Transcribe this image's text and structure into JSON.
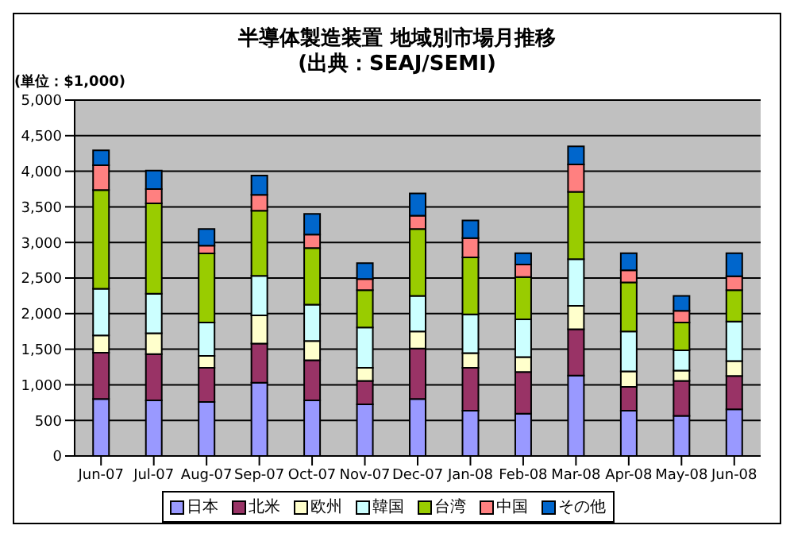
{
  "chart_data": {
    "type": "bar",
    "stacked": true,
    "title": "半導体製造装置 地域別市場月推移",
    "subtitle": "(出典：SEAJ/SEMI)",
    "ylabel": "(単位：$1,000)",
    "categories": [
      "Jun-07",
      "Jul-07",
      "Aug-07",
      "Sep-07",
      "Oct-07",
      "Nov-07",
      "Dec-07",
      "Jan-08",
      "Feb-08",
      "Mar-08",
      "Apr-08",
      "May-08",
      "Jun-08"
    ],
    "series": [
      {
        "name": "日本",
        "color": "#9999ff",
        "values": [
          800,
          780,
          760,
          1030,
          780,
          725,
          800,
          635,
          595,
          1130,
          635,
          565,
          655
        ]
      },
      {
        "name": "北米",
        "color": "#993366",
        "values": [
          650,
          650,
          480,
          550,
          565,
          330,
          710,
          605,
          585,
          650,
          335,
          490,
          470
        ]
      },
      {
        "name": "欧州",
        "color": "#ffffcc",
        "values": [
          245,
          295,
          165,
          395,
          270,
          185,
          240,
          205,
          210,
          330,
          220,
          145,
          210
        ]
      },
      {
        "name": "韓国",
        "color": "#ccffff",
        "values": [
          655,
          555,
          470,
          555,
          510,
          565,
          500,
          545,
          530,
          655,
          560,
          285,
          555
        ]
      },
      {
        "name": "台湾",
        "color": "#99cc00",
        "values": [
          1385,
          1270,
          970,
          915,
          795,
          525,
          940,
          800,
          595,
          945,
          690,
          390,
          440
        ]
      },
      {
        "name": "中国",
        "color": "#ff8080",
        "values": [
          350,
          200,
          110,
          225,
          190,
          155,
          185,
          270,
          175,
          385,
          170,
          165,
          195
        ]
      },
      {
        "name": "その他",
        "color": "#0066cc",
        "values": [
          210,
          260,
          235,
          270,
          290,
          225,
          315,
          250,
          160,
          255,
          240,
          210,
          325
        ]
      }
    ],
    "ylim": [
      0,
      5000
    ],
    "yticks": [
      {
        "value": 0,
        "label": "0"
      },
      {
        "value": 500,
        "label": "500"
      },
      {
        "value": 1000,
        "label": "1,000"
      },
      {
        "value": 1500,
        "label": "1,500"
      },
      {
        "value": 2000,
        "label": "2,000"
      },
      {
        "value": 2500,
        "label": "2,500"
      },
      {
        "value": 3000,
        "label": "3,000"
      },
      {
        "value": 3500,
        "label": "3,500"
      },
      {
        "value": 4000,
        "label": "4,000"
      },
      {
        "value": 4500,
        "label": "4,500"
      },
      {
        "value": 5000,
        "label": "5,000"
      }
    ],
    "grid": "y",
    "legend": "bottom"
  }
}
